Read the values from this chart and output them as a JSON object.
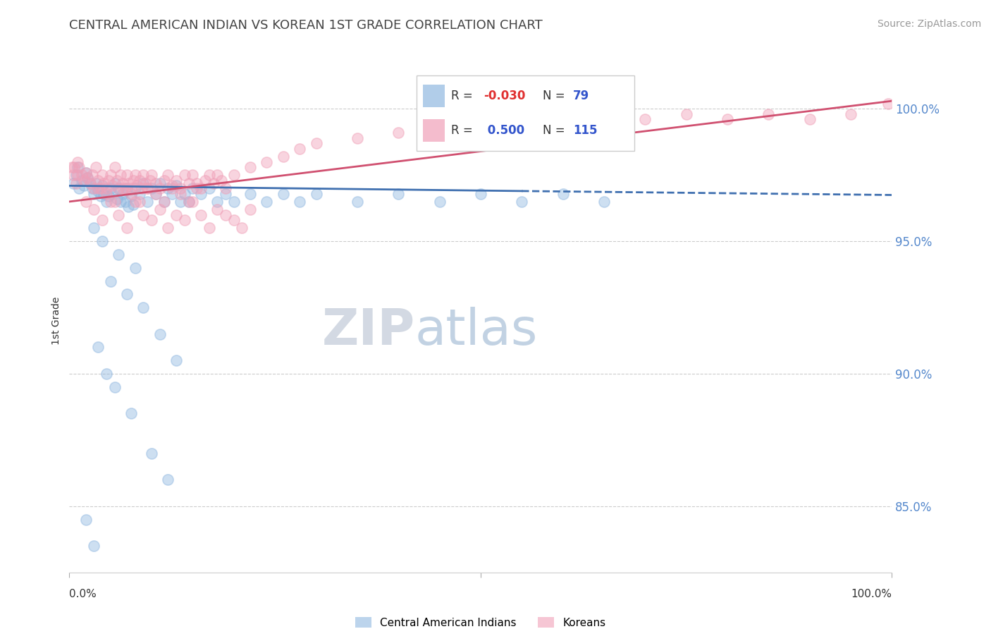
{
  "title": "CENTRAL AMERICAN INDIAN VS KOREAN 1ST GRADE CORRELATION CHART",
  "source": "Source: ZipAtlas.com",
  "ylabel": "1st Grade",
  "xlim": [
    0.0,
    100.0
  ],
  "ylim": [
    82.5,
    101.5
  ],
  "yticks": [
    85.0,
    90.0,
    95.0,
    100.0
  ],
  "ytick_labels": [
    "85.0%",
    "90.0%",
    "95.0%",
    "100.0%"
  ],
  "legend_labels": [
    "Central American Indians",
    "Koreans"
  ],
  "blue_color": "#90b8e0",
  "pink_color": "#f0a0b8",
  "trend_blue_color": "#4070b0",
  "trend_pink_color": "#d05070",
  "watermark_zip": "ZIP",
  "watermark_atlas": "atlas",
  "watermark_color_zip": "#c8d0dc",
  "watermark_color_atlas": "#a8c0d8",
  "blue_R": -0.03,
  "blue_N": 79,
  "pink_R": 0.5,
  "pink_N": 115,
  "blue_scatter_x": [
    0.5,
    0.8,
    1.0,
    1.2,
    1.5,
    1.8,
    2.0,
    2.2,
    2.5,
    2.8,
    3.0,
    3.2,
    3.5,
    3.8,
    4.0,
    4.2,
    4.5,
    4.8,
    5.0,
    5.2,
    5.5,
    5.8,
    6.0,
    6.2,
    6.5,
    6.8,
    7.0,
    7.2,
    7.5,
    7.8,
    8.0,
    8.5,
    9.0,
    9.5,
    10.0,
    10.5,
    11.0,
    11.5,
    12.0,
    12.5,
    13.0,
    13.5,
    14.0,
    14.5,
    15.0,
    16.0,
    17.0,
    18.0,
    19.0,
    20.0,
    22.0,
    24.0,
    26.0,
    28.0,
    30.0,
    35.0,
    40.0,
    45.0,
    50.0,
    55.0,
    60.0,
    65.0,
    3.0,
    4.0,
    6.0,
    8.0,
    5.0,
    7.0,
    9.0,
    11.0,
    13.0,
    3.5,
    4.5,
    5.5,
    7.5,
    10.0,
    12.0,
    2.0,
    3.0
  ],
  "blue_scatter_y": [
    97.2,
    97.5,
    97.8,
    97.0,
    97.3,
    97.1,
    97.6,
    97.4,
    97.2,
    97.0,
    96.8,
    97.2,
    96.9,
    96.7,
    97.1,
    96.8,
    96.5,
    96.7,
    97.0,
    96.8,
    97.2,
    96.6,
    97.0,
    96.5,
    96.8,
    96.5,
    97.0,
    96.3,
    96.7,
    96.4,
    97.0,
    96.8,
    97.2,
    96.5,
    97.0,
    96.8,
    97.2,
    96.5,
    97.0,
    96.8,
    97.1,
    96.5,
    96.8,
    96.5,
    97.0,
    96.8,
    97.0,
    96.5,
    96.8,
    96.5,
    96.8,
    96.5,
    96.8,
    96.5,
    96.8,
    96.5,
    96.8,
    96.5,
    96.8,
    96.5,
    96.8,
    96.5,
    95.5,
    95.0,
    94.5,
    94.0,
    93.5,
    93.0,
    92.5,
    91.5,
    90.5,
    91.0,
    90.0,
    89.5,
    88.5,
    87.0,
    86.0,
    84.5,
    83.5
  ],
  "pink_scatter_x": [
    0.3,
    0.5,
    0.8,
    1.0,
    1.2,
    1.5,
    1.8,
    2.0,
    2.2,
    2.5,
    2.8,
    3.0,
    3.2,
    3.5,
    3.8,
    4.0,
    4.2,
    4.5,
    4.8,
    5.0,
    5.2,
    5.5,
    5.8,
    6.0,
    6.2,
    6.5,
    6.8,
    7.0,
    7.2,
    7.5,
    7.8,
    8.0,
    8.2,
    8.5,
    8.8,
    9.0,
    9.2,
    9.5,
    9.8,
    10.0,
    10.5,
    11.0,
    11.5,
    12.0,
    12.5,
    13.0,
    13.5,
    14.0,
    14.5,
    15.0,
    15.5,
    16.0,
    16.5,
    17.0,
    17.5,
    18.0,
    18.5,
    19.0,
    20.0,
    22.0,
    24.0,
    26.0,
    28.0,
    30.0,
    35.0,
    40.0,
    45.0,
    50.0,
    55.0,
    60.0,
    65.0,
    70.0,
    75.0,
    80.0,
    85.0,
    90.0,
    95.0,
    99.5,
    2.0,
    3.0,
    4.0,
    5.0,
    6.0,
    7.0,
    8.0,
    9.0,
    10.0,
    11.0,
    12.0,
    13.0,
    14.0,
    15.0,
    16.0,
    17.0,
    18.0,
    19.0,
    20.0,
    21.0,
    22.0,
    3.5,
    4.5,
    5.5,
    6.5,
    7.5,
    8.5,
    9.5,
    10.5,
    11.5,
    12.5,
    13.5,
    14.5,
    15.5,
    0.6,
    1.0
  ],
  "pink_scatter_y": [
    97.8,
    97.5,
    97.2,
    98.0,
    97.8,
    97.5,
    97.3,
    97.6,
    97.4,
    97.2,
    97.5,
    97.0,
    97.8,
    97.3,
    97.0,
    97.5,
    97.2,
    97.0,
    97.3,
    97.5,
    97.1,
    97.8,
    97.3,
    97.0,
    97.5,
    97.2,
    97.0,
    97.5,
    97.2,
    97.0,
    97.3,
    97.5,
    97.1,
    97.3,
    97.0,
    97.5,
    97.2,
    97.0,
    97.3,
    97.5,
    97.2,
    97.0,
    97.3,
    97.5,
    97.1,
    97.3,
    97.0,
    97.5,
    97.2,
    97.5,
    97.2,
    97.0,
    97.3,
    97.5,
    97.2,
    97.5,
    97.3,
    97.0,
    97.5,
    97.8,
    98.0,
    98.2,
    98.5,
    98.7,
    98.9,
    99.1,
    99.3,
    99.5,
    99.4,
    99.6,
    99.4,
    99.6,
    99.8,
    99.6,
    99.8,
    99.6,
    99.8,
    100.2,
    96.5,
    96.2,
    95.8,
    96.5,
    96.0,
    95.5,
    96.5,
    96.0,
    95.8,
    96.2,
    95.5,
    96.0,
    95.8,
    96.5,
    96.0,
    95.5,
    96.2,
    96.0,
    95.8,
    95.5,
    96.2,
    97.0,
    96.8,
    96.5,
    97.0,
    96.8,
    96.5,
    97.0,
    96.8,
    96.5,
    97.0,
    96.8,
    96.5,
    97.0,
    97.8,
    97.5
  ]
}
